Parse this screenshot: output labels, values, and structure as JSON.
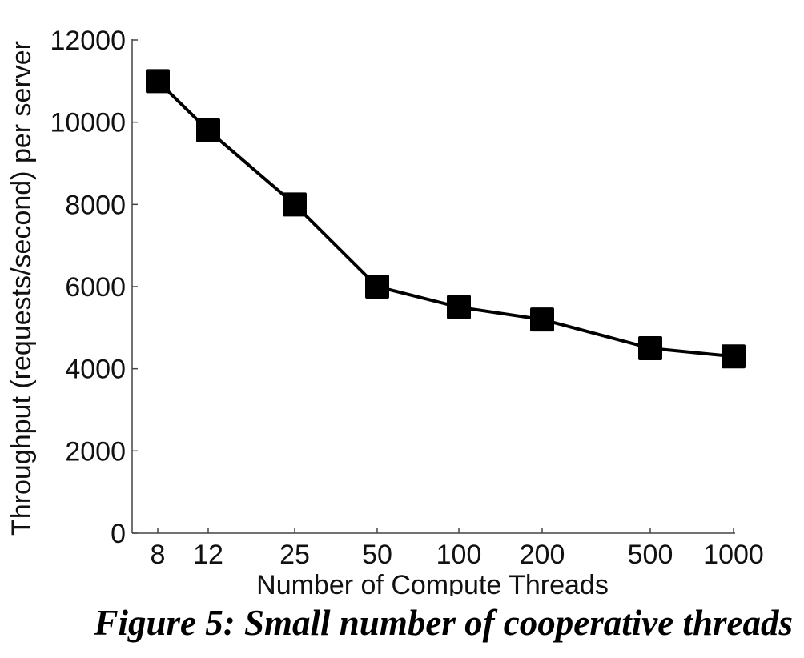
{
  "chart_data": {
    "type": "line",
    "categories": [
      "8",
      "12",
      "25",
      "50",
      "100",
      "200",
      "500",
      "1000"
    ],
    "series": [
      {
        "values": [
          11000,
          9800,
          8000,
          6000,
          5500,
          5200,
          4500,
          4300
        ]
      }
    ],
    "xlabel": "Number of Compute Threads",
    "ylabel": "Throughput (requests/second) per server",
    "ylim": [
      0,
      12000
    ],
    "yticks": [
      0,
      2000,
      4000,
      6000,
      8000,
      10000,
      12000
    ],
    "marker": "square",
    "line_color": "#000000",
    "grid": false
  },
  "caption": "Figure 5: Small number of cooperative threads"
}
